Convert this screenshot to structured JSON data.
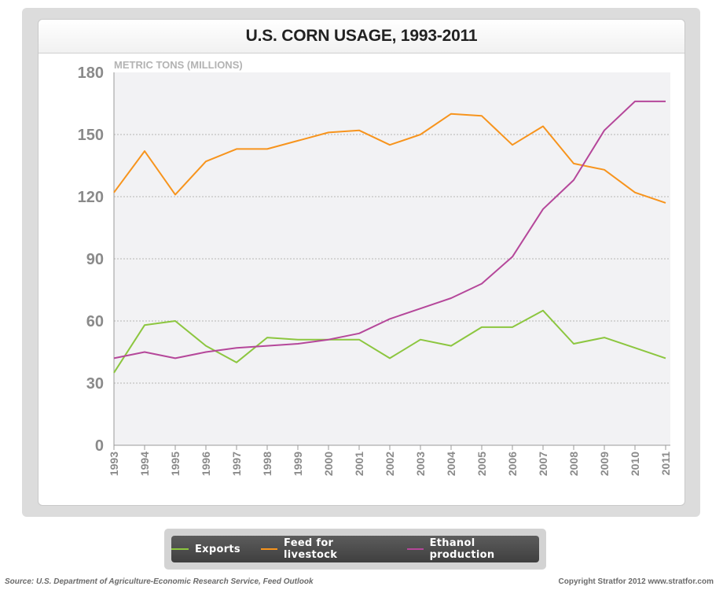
{
  "chart_data": {
    "type": "line",
    "title": "U.S. CORN USAGE, 1993-2011",
    "ylabel": "METRIC TONS (MILLIONS)",
    "xlabel": "",
    "ylim": [
      0,
      180
    ],
    "yticks": [
      0,
      30,
      60,
      90,
      120,
      150,
      180
    ],
    "grid": true,
    "legend_position": "bottom",
    "x": [
      "1993",
      "1994",
      "1995",
      "1996",
      "1997",
      "1998",
      "1999",
      "2000",
      "2001",
      "2002",
      "2003",
      "2004",
      "2005",
      "2006",
      "2007",
      "2008",
      "2009",
      "2010",
      "2011"
    ],
    "series": [
      {
        "name": "Exports",
        "color": "#8cc63f",
        "values": [
          35,
          58,
          60,
          48,
          40,
          52,
          51,
          51,
          51,
          42,
          51,
          48,
          57,
          57,
          65,
          49,
          52,
          47,
          42
        ]
      },
      {
        "name": "Feed for livestock",
        "color": "#f7941d",
        "values": [
          122,
          142,
          121,
          137,
          143,
          143,
          147,
          151,
          152,
          145,
          150,
          160,
          159,
          145,
          154,
          136,
          133,
          122,
          117
        ]
      },
      {
        "name": "Ethanol production",
        "color": "#b5479a",
        "values": [
          42,
          45,
          42,
          45,
          47,
          48,
          49,
          51,
          54,
          61,
          66,
          71,
          78,
          91,
          114,
          128,
          152,
          166,
          166
        ]
      }
    ]
  },
  "footer": {
    "source": "Source: U.S. Department of Agriculture-Economic Research Service, Feed Outlook",
    "copyright": "Copyright Stratfor 2012   www.stratfor.com"
  }
}
